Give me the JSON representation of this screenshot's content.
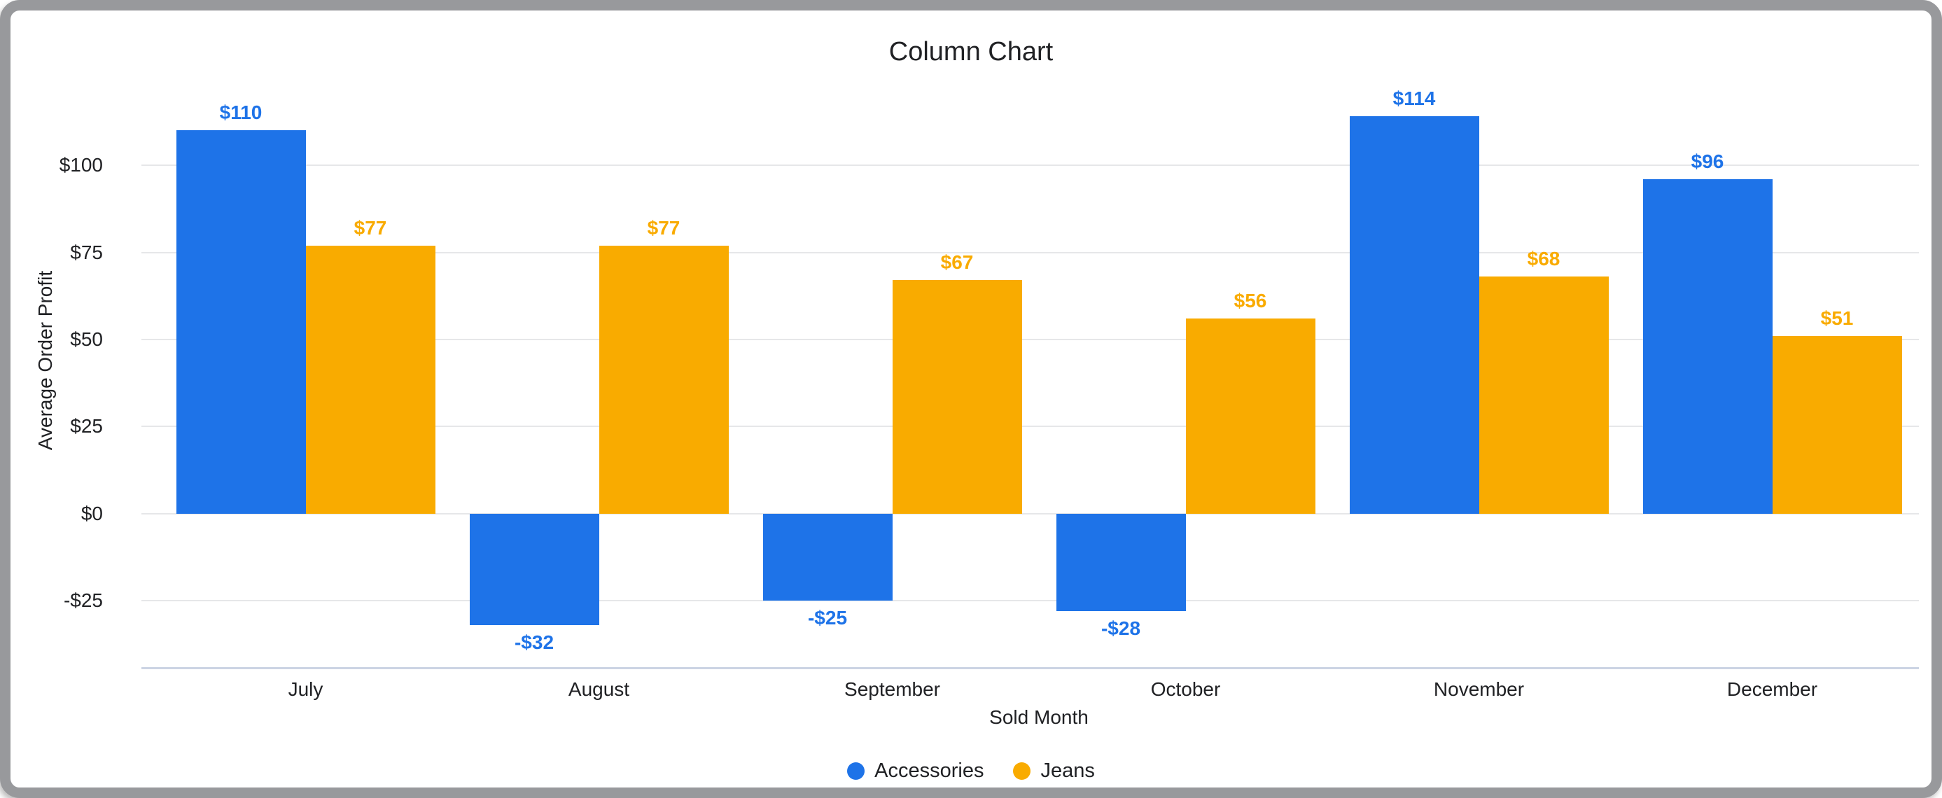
{
  "chart_data": {
    "type": "bar",
    "title": "Column Chart",
    "xlabel": "Sold Month",
    "ylabel": "Average Order Profit",
    "categories": [
      "July",
      "August",
      "September",
      "October",
      "November",
      "December"
    ],
    "series": [
      {
        "name": "Accessories",
        "color": "#1e73e8",
        "values": [
          110,
          -32,
          -25,
          -28,
          114,
          96
        ],
        "labels": [
          "$110",
          "-$32",
          "-$25",
          "-$28",
          "$114",
          "$96"
        ]
      },
      {
        "name": "Jeans",
        "color": "#f9ab00",
        "values": [
          77,
          77,
          67,
          56,
          68,
          51
        ],
        "labels": [
          "$77",
          "$77",
          "$67",
          "$56",
          "$68",
          "$51"
        ]
      }
    ],
    "y_ticks": [
      {
        "value": 100,
        "label": "$100"
      },
      {
        "value": 75,
        "label": "$75"
      },
      {
        "value": 50,
        "label": "$50"
      },
      {
        "value": 25,
        "label": "$25"
      },
      {
        "value": 0,
        "label": "$0"
      },
      {
        "value": -25,
        "label": "-$25"
      }
    ],
    "ylim": [
      -44.4,
      118.3
    ],
    "grid": true,
    "legend_position": "bottom",
    "colors": {
      "grid": "#e6e7e9",
      "baseline": "#ccd4e4",
      "text": "#202124",
      "frame": "#98999c"
    }
  }
}
